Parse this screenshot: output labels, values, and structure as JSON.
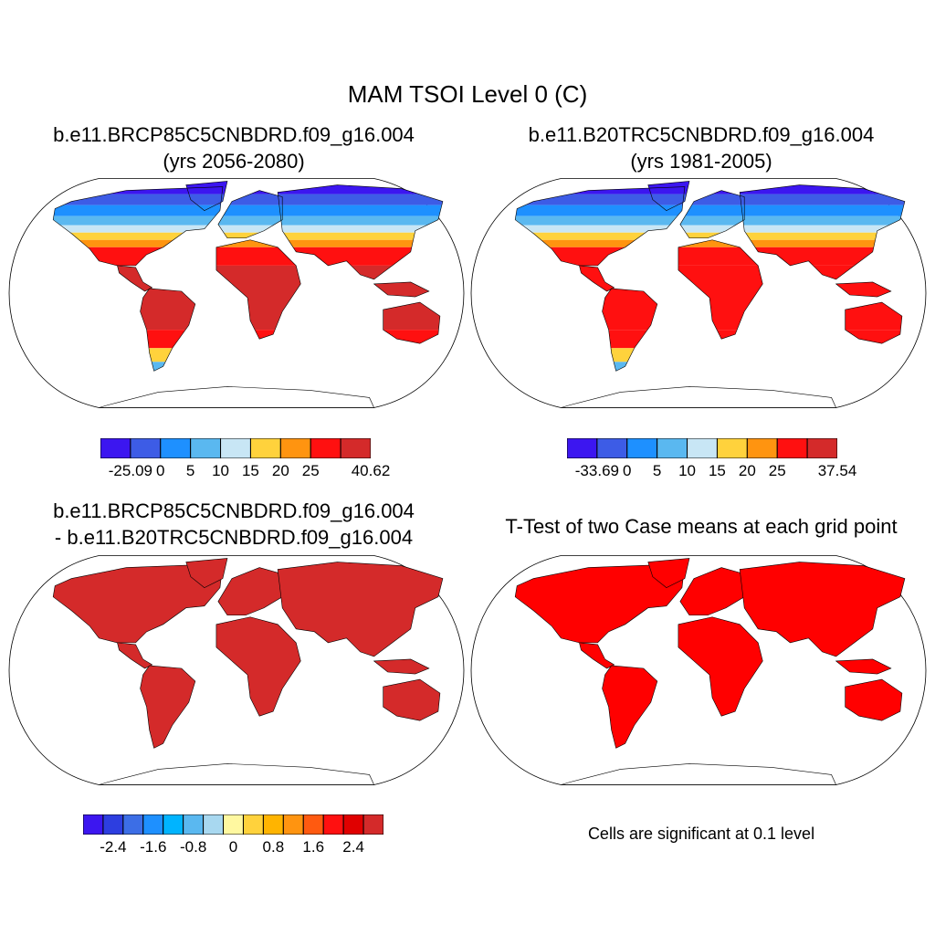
{
  "title": "MAM TSOI Level 0 (C)",
  "panels": [
    {
      "title_line1": "b.e11.BRCP85C5CNBDRD.f09_g16.004",
      "title_line2": "(yrs 2056-2080)",
      "colorbar": {
        "colors": [
          "#3c16f0",
          "#3d5ce6",
          "#1e90ff",
          "#5ab8f0",
          "#c8e6f5",
          "#ffd23c",
          "#ff9410",
          "#ff1010",
          "#d42a2a"
        ],
        "labels": [
          "-25.09",
          "0",
          "5",
          "10",
          "15",
          "20",
          "25",
          "40.62"
        ]
      }
    },
    {
      "title_line1": "b.e11.B20TRC5CNBDRD.f09_g16.004",
      "title_line2": "(yrs 1981-2005)",
      "colorbar": {
        "colors": [
          "#3c16f0",
          "#3d5ce6",
          "#1e90ff",
          "#5ab8f0",
          "#c8e6f5",
          "#ffd23c",
          "#ff9410",
          "#ff1010",
          "#d42a2a"
        ],
        "labels": [
          "-33.69",
          "0",
          "5",
          "10",
          "15",
          "20",
          "25",
          "37.54"
        ]
      }
    },
    {
      "title_line1": "b.e11.BRCP85C5CNBDRD.f09_g16.004",
      "title_line2": "- b.e11.B20TRC5CNBDRD.f09_g16.004",
      "colorbar": {
        "colors": [
          "#3c16f0",
          "#2d3ee0",
          "#3c6ee6",
          "#1e90ff",
          "#00b4ff",
          "#5ab8f0",
          "#a8d8f0",
          "#fff8a0",
          "#ffd23c",
          "#ffb400",
          "#ff9410",
          "#ff5a10",
          "#ff1010",
          "#e00000",
          "#d42a2a"
        ],
        "labels": [
          "-2.4",
          "-1.6",
          "-0.8",
          "0",
          "0.8",
          "1.6",
          "2.4"
        ]
      }
    },
    {
      "title_line1": "T-Test of two Case means at each grid point",
      "note": "Cells are significant at 0.1 level",
      "fill_color": "#ff0000"
    }
  ],
  "colors": {
    "land_warm": "#d42a2a",
    "ocean": "#ffffff",
    "outline": "#000000"
  }
}
